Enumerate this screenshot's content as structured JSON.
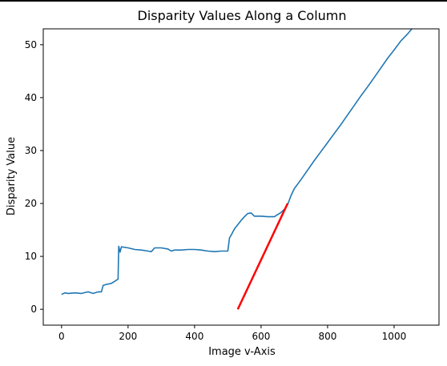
{
  "chart_data": {
    "type": "line",
    "title": "Disparity Values Along a Column",
    "xlabel": "Image v-Axis",
    "ylabel": "Disparity Value",
    "xlim": [
      -55,
      1135
    ],
    "ylim": [
      -3,
      53
    ],
    "xticks": [
      0,
      200,
      400,
      600,
      800,
      1000
    ],
    "yticks": [
      0,
      10,
      20,
      30,
      40,
      50
    ],
    "grid": false,
    "colors": {
      "disparity": "#1f77b4",
      "fit": "#ff0000"
    },
    "series": [
      {
        "key": "disparity",
        "x": [
          0,
          10,
          20,
          40,
          60,
          80,
          95,
          110,
          120,
          125,
          135,
          150,
          160,
          170,
          172,
          176,
          180,
          200,
          220,
          240,
          260,
          270,
          280,
          300,
          320,
          330,
          340,
          360,
          380,
          400,
          420,
          440,
          460,
          480,
          490,
          500,
          505,
          510,
          520,
          540,
          550,
          560,
          570,
          580,
          600,
          620,
          640,
          660,
          670,
          680,
          690,
          700,
          720,
          740,
          760,
          780,
          800,
          820,
          840,
          860,
          880,
          900,
          920,
          940,
          960,
          980,
          1000,
          1020,
          1040,
          1060,
          1080
        ],
        "y": [
          2.8,
          3.1,
          3.0,
          3.1,
          3.0,
          3.3,
          3.0,
          3.3,
          3.3,
          4.5,
          4.7,
          4.9,
          5.3,
          5.7,
          11.9,
          10.8,
          11.8,
          11.6,
          11.3,
          11.2,
          11.0,
          10.9,
          11.6,
          11.6,
          11.4,
          11.0,
          11.2,
          11.2,
          11.3,
          11.3,
          11.2,
          11.0,
          10.9,
          11.0,
          11.0,
          11.0,
          13.5,
          14.0,
          15.2,
          16.8,
          17.5,
          18.1,
          18.2,
          17.6,
          17.6,
          17.5,
          17.5,
          18.3,
          18.9,
          19.8,
          21.5,
          22.8,
          24.5,
          26.3,
          28.1,
          29.8,
          31.5,
          33.2,
          34.9,
          36.7,
          38.5,
          40.3,
          42.0,
          43.8,
          45.6,
          47.4,
          49.0,
          50.7,
          52.0,
          53.5,
          55.0
        ],
        "y_note": ""
      },
      {
        "key": "fit",
        "x": [
          530,
          680
        ],
        "y": [
          0,
          20
        ]
      }
    ]
  }
}
